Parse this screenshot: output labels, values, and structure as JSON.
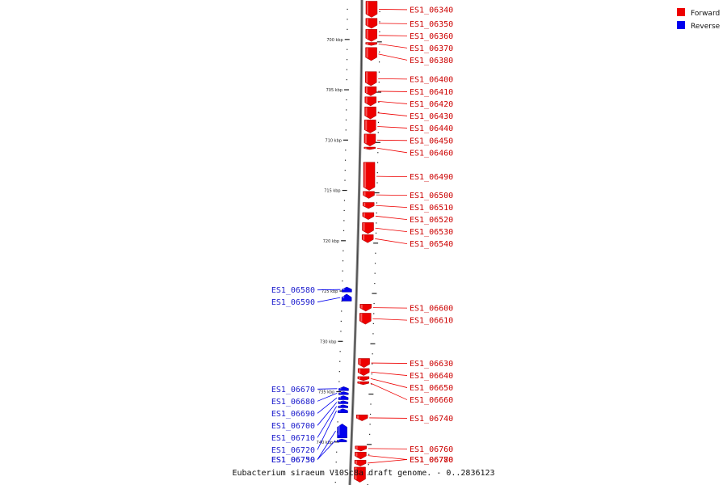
{
  "caption": "Eubacterium siraeum V10Sc8a draft genome. - 0..2836123",
  "legend": [
    {
      "label": "Forward",
      "color": "#ee0000"
    },
    {
      "label": "Reverse",
      "color": "#0000ee"
    }
  ],
  "ticks": [
    {
      "kbp": 700,
      "label": "700 kbp"
    },
    {
      "kbp": 705,
      "label": "705 kbp"
    },
    {
      "kbp": 710,
      "label": "710 kbp"
    },
    {
      "kbp": 715,
      "label": "715 kbp"
    },
    {
      "kbp": 720,
      "label": "720 kbp"
    },
    {
      "kbp": 725,
      "label": "725 kbp"
    },
    {
      "kbp": 730,
      "label": "730 kbp"
    },
    {
      "kbp": 735,
      "label": "735 kbp"
    },
    {
      "kbp": 740,
      "label": "740 kbp"
    }
  ],
  "genes": [
    {
      "id": "ES1_06340",
      "strand": "forward",
      "start_kbp": 696.2,
      "end_kbp": 697.8
    },
    {
      "id": "ES1_06350",
      "strand": "forward",
      "start_kbp": 697.9,
      "end_kbp": 698.9
    },
    {
      "id": "ES1_06360",
      "strand": "forward",
      "start_kbp": 699.0,
      "end_kbp": 700.2
    },
    {
      "id": "ES1_06370",
      "strand": "forward",
      "start_kbp": 700.3,
      "end_kbp": 700.6
    },
    {
      "id": "ES1_06380",
      "strand": "forward",
      "start_kbp": 700.8,
      "end_kbp": 702.1
    },
    {
      "id": "ES1_06400",
      "strand": "forward",
      "start_kbp": 703.2,
      "end_kbp": 704.6
    },
    {
      "id": "ES1_06410",
      "strand": "forward",
      "start_kbp": 704.7,
      "end_kbp": 705.6
    },
    {
      "id": "ES1_06420",
      "strand": "forward",
      "start_kbp": 705.7,
      "end_kbp": 706.6
    },
    {
      "id": "ES1_06430",
      "strand": "forward",
      "start_kbp": 706.7,
      "end_kbp": 707.9
    },
    {
      "id": "ES1_06440",
      "strand": "forward",
      "start_kbp": 708.0,
      "end_kbp": 709.3
    },
    {
      "id": "ES1_06450",
      "strand": "forward",
      "start_kbp": 709.4,
      "end_kbp": 710.6
    },
    {
      "id": "ES1_06460",
      "strand": "forward",
      "start_kbp": 710.7,
      "end_kbp": 710.9
    },
    {
      "id": "ES1_06490",
      "strand": "forward",
      "start_kbp": 712.2,
      "end_kbp": 715.0
    },
    {
      "id": "ES1_06500",
      "strand": "forward",
      "start_kbp": 715.1,
      "end_kbp": 715.8
    },
    {
      "id": "ES1_06510",
      "strand": "forward",
      "start_kbp": 716.2,
      "end_kbp": 716.8
    },
    {
      "id": "ES1_06520",
      "strand": "forward",
      "start_kbp": 717.2,
      "end_kbp": 717.9
    },
    {
      "id": "ES1_06530",
      "strand": "forward",
      "start_kbp": 718.2,
      "end_kbp": 719.3
    },
    {
      "id": "ES1_06540",
      "strand": "forward",
      "start_kbp": 719.4,
      "end_kbp": 720.2
    },
    {
      "id": "ES1_06580",
      "strand": "reverse",
      "start_kbp": 724.6,
      "end_kbp": 725.1
    },
    {
      "id": "ES1_06590",
      "strand": "reverse",
      "start_kbp": 725.3,
      "end_kbp": 726.0
    },
    {
      "id": "ES1_06600",
      "strand": "forward",
      "start_kbp": 726.3,
      "end_kbp": 727.0
    },
    {
      "id": "ES1_06610",
      "strand": "forward",
      "start_kbp": 727.2,
      "end_kbp": 728.3
    },
    {
      "id": "ES1_06630",
      "strand": "forward",
      "start_kbp": 731.7,
      "end_kbp": 732.6
    },
    {
      "id": "ES1_06640",
      "strand": "forward",
      "start_kbp": 732.7,
      "end_kbp": 733.4
    },
    {
      "id": "ES1_06650",
      "strand": "forward",
      "start_kbp": 733.5,
      "end_kbp": 733.9
    },
    {
      "id": "ES1_06660",
      "strand": "forward",
      "start_kbp": 734.0,
      "end_kbp": 734.3
    },
    {
      "id": "ES1_06670",
      "strand": "reverse",
      "start_kbp": 734.5,
      "end_kbp": 734.9
    },
    {
      "id": "ES1_06680",
      "strand": "reverse",
      "start_kbp": 735.0,
      "end_kbp": 735.3
    },
    {
      "id": "ES1_06690",
      "strand": "reverse",
      "start_kbp": 735.4,
      "end_kbp": 735.8
    },
    {
      "id": "ES1_06700",
      "strand": "reverse",
      "start_kbp": 735.9,
      "end_kbp": 736.2
    },
    {
      "id": "ES1_06710",
      "strand": "reverse",
      "start_kbp": 736.3,
      "end_kbp": 736.6
    },
    {
      "id": "ES1_06720",
      "strand": "reverse",
      "start_kbp": 736.7,
      "end_kbp": 737.1
    },
    {
      "id": "ES1_06740",
      "strand": "forward",
      "start_kbp": 737.3,
      "end_kbp": 737.9
    },
    {
      "id": "ES1_06730",
      "strand": "reverse",
      "start_kbp": 738.2,
      "end_kbp": 739.6
    },
    {
      "id": "ES1_06750",
      "strand": "reverse",
      "start_kbp": 739.7,
      "end_kbp": 740.0
    },
    {
      "id": "ES1_06760",
      "strand": "forward",
      "start_kbp": 740.4,
      "end_kbp": 740.9
    },
    {
      "id": "ES1_06770",
      "strand": "forward",
      "start_kbp": 741.0,
      "end_kbp": 741.7
    },
    {
      "id": "ES1_06780",
      "strand": "forward",
      "start_kbp": 741.8,
      "end_kbp": 742.4
    },
    {
      "id": "",
      "strand": "forward",
      "start_kbp": 742.5,
      "end_kbp": 744.0
    }
  ]
}
